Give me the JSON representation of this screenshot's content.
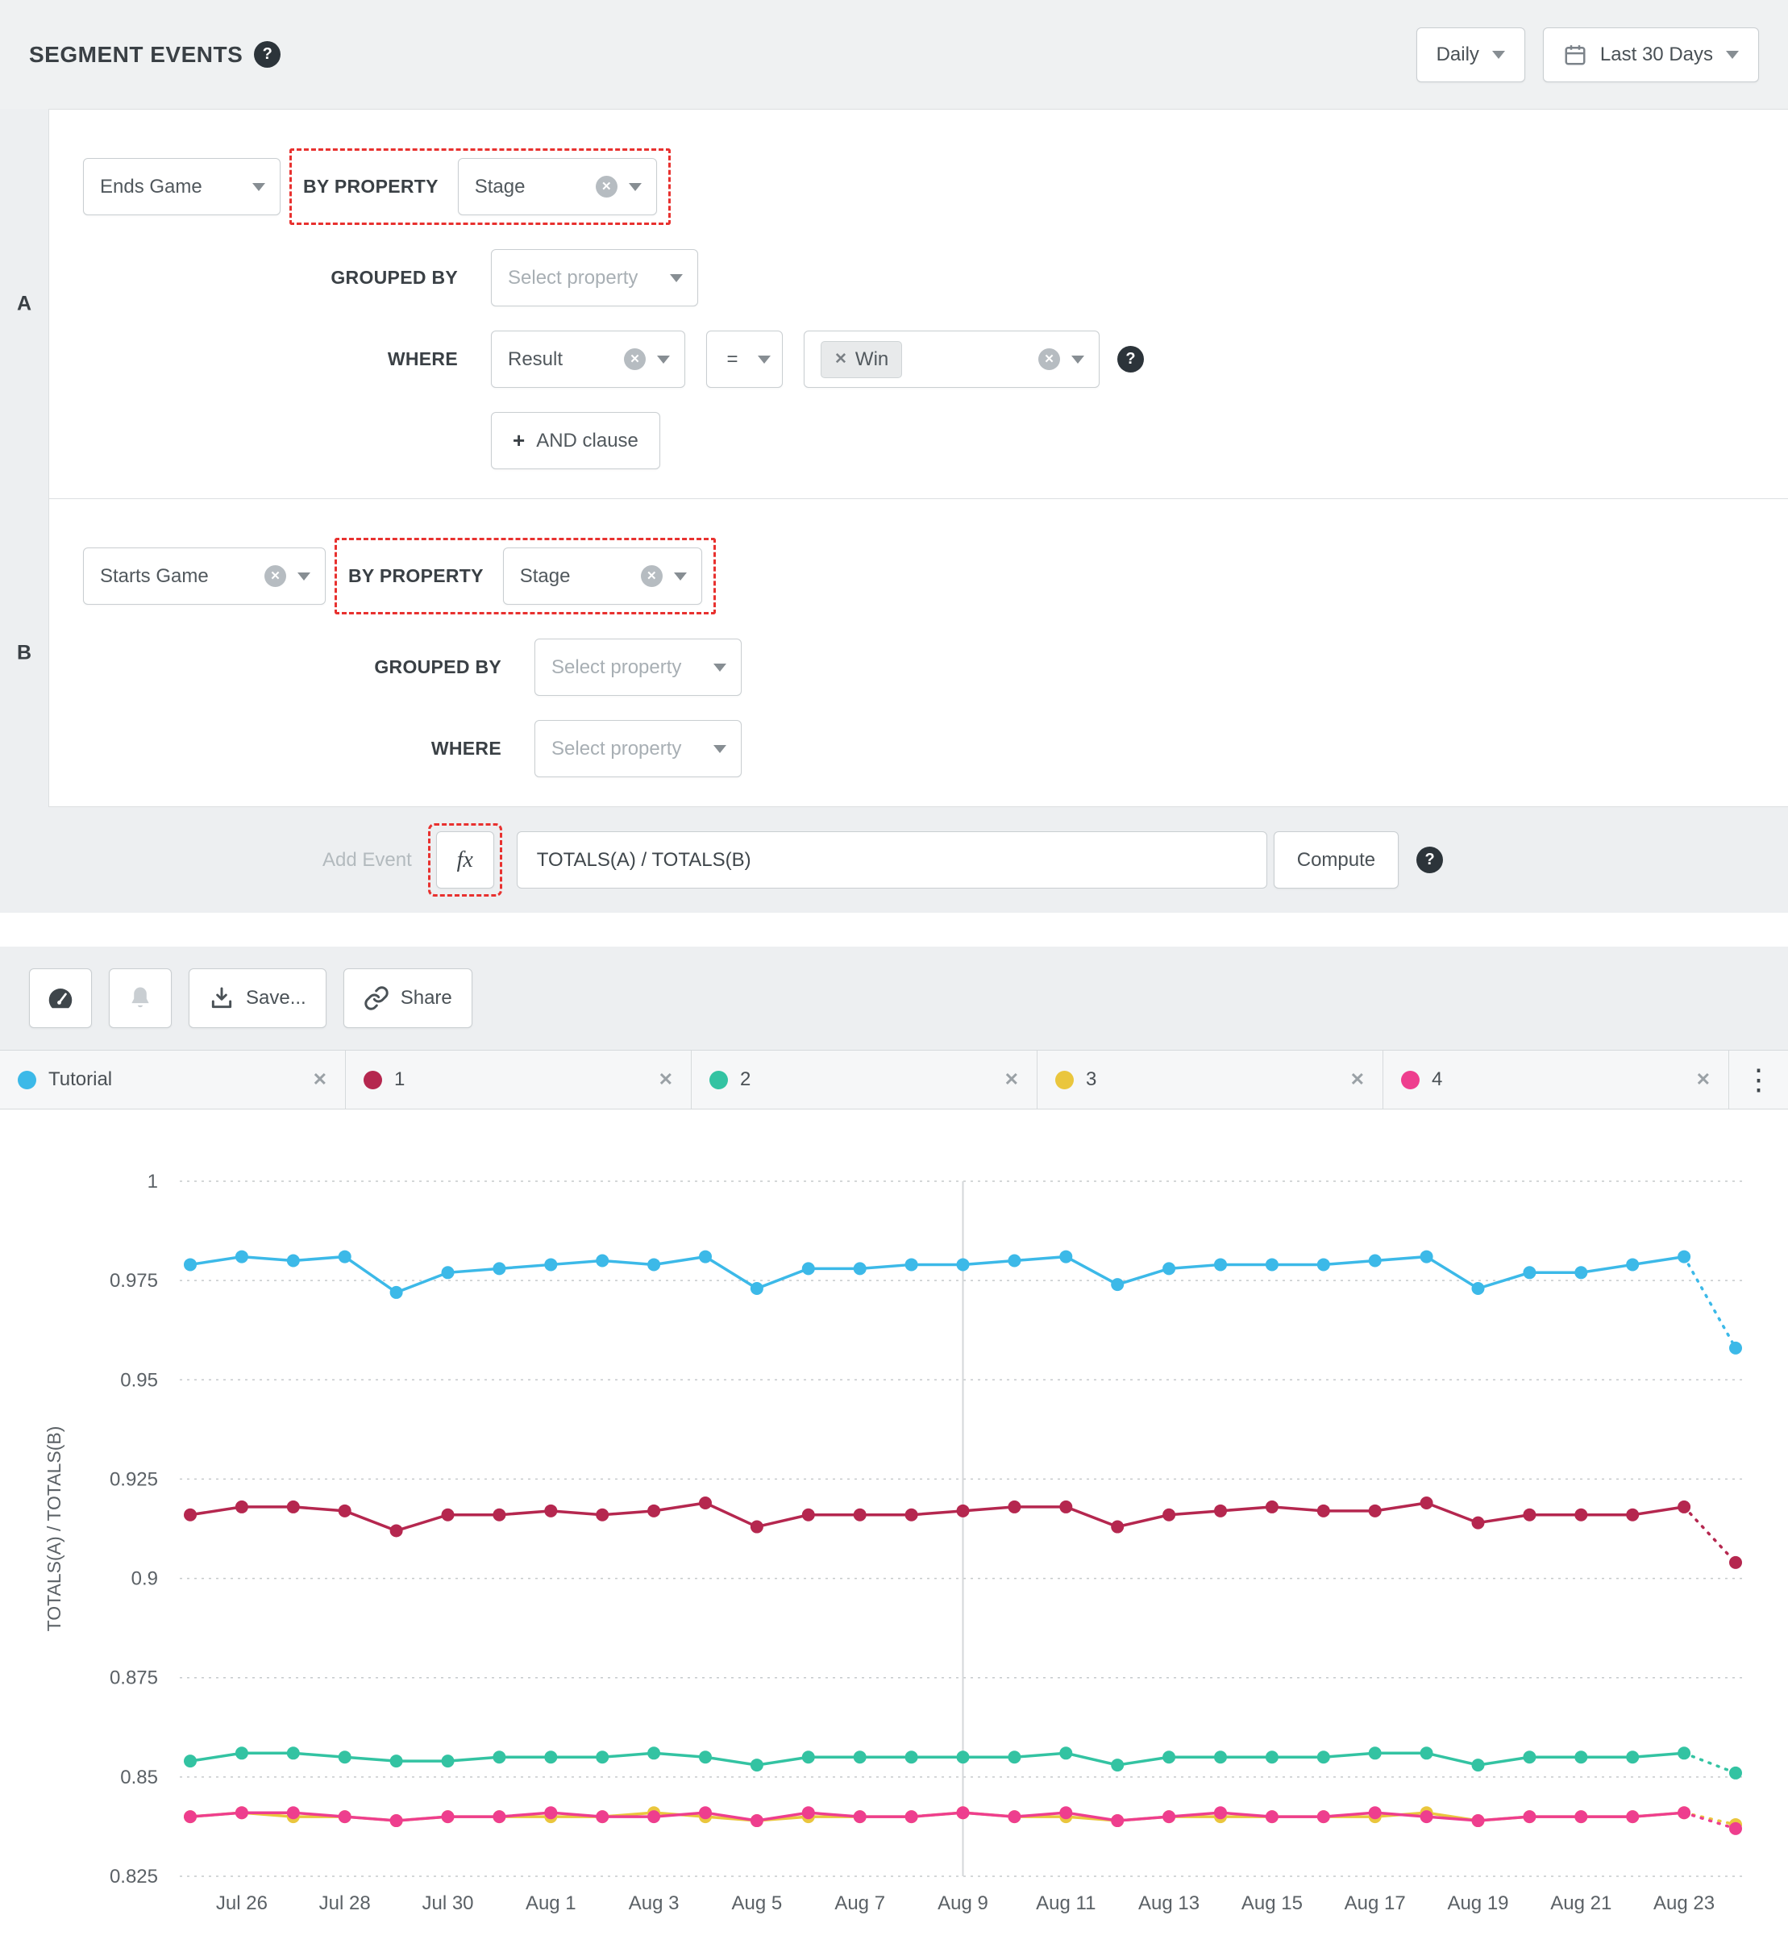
{
  "header": {
    "title": "SEGMENT EVENTS",
    "granularity": "Daily",
    "date_range": "Last 30 Days"
  },
  "builder": {
    "row_a": {
      "row_label": "A",
      "event": "Ends Game",
      "by_property_label": "BY PROPERTY",
      "by_property_value": "Stage",
      "grouped_by_label": "GROUPED BY",
      "grouped_by_placeholder": "Select property",
      "where_label": "WHERE",
      "where_property": "Result",
      "where_operator": "=",
      "where_value": "Win",
      "and_clause_plus": "+",
      "and_clause_label": "AND clause"
    },
    "row_b": {
      "row_label": "B",
      "event": "Starts Game",
      "by_property_label": "BY PROPERTY",
      "by_property_value": "Stage",
      "grouped_by_label": "GROUPED BY",
      "grouped_by_placeholder": "Select property",
      "where_label": "WHERE",
      "where_placeholder": "Select property"
    },
    "formula": {
      "add_event_label": "Add Event",
      "fx_label": "fx",
      "expression": "TOTALS(A) / TOTALS(B)",
      "compute_label": "Compute"
    }
  },
  "toolbar": {
    "save_label": "Save...",
    "share_label": "Share"
  },
  "legend": {
    "items": [
      {
        "label": "Tutorial"
      },
      {
        "label": "1"
      },
      {
        "label": "2"
      },
      {
        "label": "3"
      },
      {
        "label": "4"
      }
    ]
  },
  "chart_data": {
    "type": "line",
    "title": "",
    "xlabel": "",
    "ylabel": "TOTALS(A) / TOTALS(B)",
    "ylim": [
      0.825,
      1.0
    ],
    "y_ticks": [
      1,
      0.975,
      0.95,
      0.925,
      0.9,
      0.875,
      0.85,
      0.825
    ],
    "grid": "dotted-horizontal",
    "legend_position": "top-tabs",
    "vertical_marker_x": "Aug 9",
    "dashed_tail_points": 1,
    "x": [
      "Jul 25",
      "Jul 26",
      "Jul 27",
      "Jul 28",
      "Jul 29",
      "Jul 30",
      "Jul 31",
      "Aug 1",
      "Aug 2",
      "Aug 3",
      "Aug 4",
      "Aug 5",
      "Aug 6",
      "Aug 7",
      "Aug 8",
      "Aug 9",
      "Aug 10",
      "Aug 11",
      "Aug 12",
      "Aug 13",
      "Aug 14",
      "Aug 15",
      "Aug 16",
      "Aug 17",
      "Aug 18",
      "Aug 19",
      "Aug 20",
      "Aug 21",
      "Aug 22",
      "Aug 23",
      "Aug 24"
    ],
    "x_tick_labels": [
      "Jul 26",
      "Jul 28",
      "Jul 30",
      "Aug 1",
      "Aug 3",
      "Aug 5",
      "Aug 7",
      "Aug 9",
      "Aug 11",
      "Aug 13",
      "Aug 15",
      "Aug 17",
      "Aug 19",
      "Aug 21",
      "Aug 23"
    ],
    "series": [
      {
        "name": "3",
        "color": "#eac63d",
        "values": [
          0.84,
          0.841,
          0.84,
          0.84,
          0.839,
          0.84,
          0.84,
          0.84,
          0.84,
          0.841,
          0.84,
          0.839,
          0.84,
          0.84,
          0.84,
          0.841,
          0.84,
          0.84,
          0.839,
          0.84,
          0.84,
          0.84,
          0.84,
          0.84,
          0.841,
          0.839,
          0.84,
          0.84,
          0.84,
          0.841,
          0.838
        ]
      },
      {
        "name": "4",
        "color": "#ee3e8e",
        "values": [
          0.84,
          0.841,
          0.841,
          0.84,
          0.839,
          0.84,
          0.84,
          0.841,
          0.84,
          0.84,
          0.841,
          0.839,
          0.841,
          0.84,
          0.84,
          0.841,
          0.84,
          0.841,
          0.839,
          0.84,
          0.841,
          0.84,
          0.84,
          0.841,
          0.84,
          0.839,
          0.84,
          0.84,
          0.84,
          0.841,
          0.837
        ]
      },
      {
        "name": "2",
        "color": "#33c3a2",
        "values": [
          0.854,
          0.856,
          0.856,
          0.855,
          0.854,
          0.854,
          0.855,
          0.855,
          0.855,
          0.856,
          0.855,
          0.853,
          0.855,
          0.855,
          0.855,
          0.855,
          0.855,
          0.856,
          0.853,
          0.855,
          0.855,
          0.855,
          0.855,
          0.856,
          0.856,
          0.853,
          0.855,
          0.855,
          0.855,
          0.856,
          0.851
        ]
      },
      {
        "name": "1",
        "color": "#b5274f",
        "values": [
          0.916,
          0.918,
          0.918,
          0.917,
          0.912,
          0.916,
          0.916,
          0.917,
          0.916,
          0.917,
          0.919,
          0.913,
          0.916,
          0.916,
          0.916,
          0.917,
          0.918,
          0.918,
          0.913,
          0.916,
          0.917,
          0.918,
          0.917,
          0.917,
          0.919,
          0.914,
          0.916,
          0.916,
          0.916,
          0.918,
          0.904
        ]
      },
      {
        "name": "Tutorial",
        "color": "#3cb9e8",
        "values": [
          0.979,
          0.981,
          0.98,
          0.981,
          0.972,
          0.977,
          0.978,
          0.979,
          0.98,
          0.979,
          0.981,
          0.973,
          0.978,
          0.978,
          0.979,
          0.979,
          0.98,
          0.981,
          0.974,
          0.978,
          0.979,
          0.979,
          0.979,
          0.98,
          0.981,
          0.973,
          0.977,
          0.977,
          0.979,
          0.981,
          0.958
        ]
      }
    ],
    "legend_color_order": {
      "Tutorial": "#3cb9e8",
      "1": "#b5274f",
      "2": "#33c3a2",
      "3": "#eac63d",
      "4": "#ee3e8e"
    }
  }
}
